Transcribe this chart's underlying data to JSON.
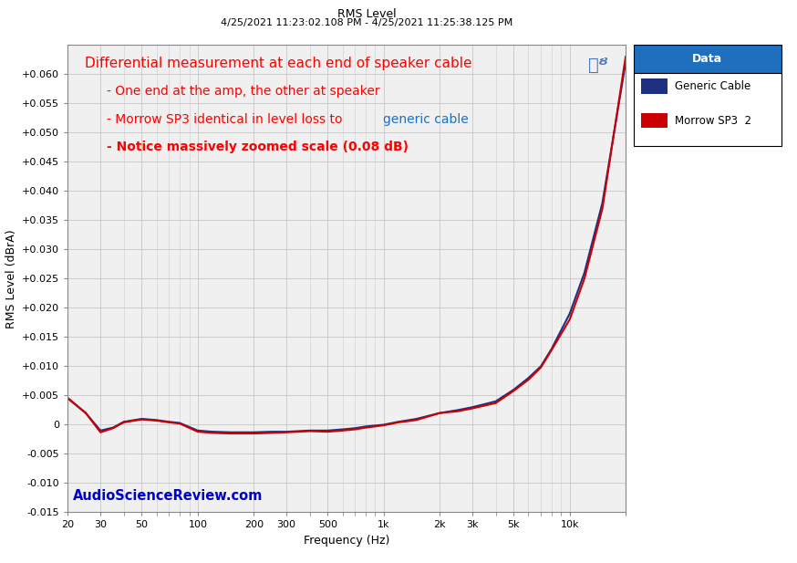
{
  "title_top": "RMS Level",
  "title_date": "4/25/2021 11:23:02.108 PM - 4/25/2021 11:25:38.125 PM",
  "ylabel": "RMS Level (dBrA)",
  "xlabel": "Frequency (Hz)",
  "ylim": [
    -0.015,
    0.065
  ],
  "yticks": [
    -0.015,
    -0.01,
    -0.005,
    0,
    0.005,
    0.01,
    0.015,
    0.02,
    0.025,
    0.03,
    0.035,
    0.04,
    0.045,
    0.05,
    0.055,
    0.06
  ],
  "xtick_labels": [
    "20",
    "30",
    "50",
    "100",
    "200",
    "300",
    "500",
    "1k",
    "2k",
    "3k",
    "5k",
    "10k",
    ""
  ],
  "xtick_values": [
    20,
    30,
    50,
    100,
    200,
    300,
    500,
    1000,
    2000,
    3000,
    5000,
    10000,
    20000
  ],
  "watermark": "AudioScienceReview.com",
  "watermark_color": "#0000CC",
  "legend_title": "Data",
  "legend_title_bg": "#1F6FBF",
  "series": [
    {
      "label": "Generic Cable",
      "color": "#1F3080",
      "linewidth": 1.5,
      "freq": [
        20,
        25,
        30,
        35,
        40,
        50,
        60,
        70,
        80,
        100,
        120,
        150,
        200,
        250,
        300,
        400,
        500,
        600,
        700,
        800,
        1000,
        1200,
        1500,
        2000,
        2500,
        3000,
        4000,
        5000,
        6000,
        7000,
        8000,
        10000,
        12000,
        15000,
        20000
      ],
      "level": [
        0.0045,
        0.002,
        -0.001,
        -0.0005,
        0.0005,
        0.001,
        0.0008,
        0.0005,
        0.0003,
        -0.001,
        -0.0012,
        -0.0013,
        -0.0013,
        -0.0012,
        -0.0012,
        -0.001,
        -0.001,
        -0.0008,
        -0.0006,
        -0.0003,
        0.0,
        0.0005,
        0.001,
        0.002,
        0.0025,
        0.003,
        0.004,
        0.006,
        0.008,
        0.01,
        0.013,
        0.019,
        0.026,
        0.038,
        0.062
      ]
    },
    {
      "label": "Morrow SP3_2",
      "color": "#CC0000",
      "linewidth": 1.5,
      "freq": [
        20,
        25,
        30,
        35,
        40,
        50,
        60,
        70,
        80,
        100,
        120,
        150,
        200,
        250,
        300,
        400,
        500,
        600,
        700,
        800,
        1000,
        1200,
        1500,
        2000,
        2500,
        3000,
        4000,
        5000,
        6000,
        7000,
        8000,
        10000,
        12000,
        15000,
        20000
      ],
      "level": [
        0.0046,
        0.002,
        -0.0013,
        -0.0006,
        0.0004,
        0.0009,
        0.0007,
        0.0004,
        0.0002,
        -0.0012,
        -0.0014,
        -0.0015,
        -0.0015,
        -0.0014,
        -0.0013,
        -0.0011,
        -0.0012,
        -0.001,
        -0.0008,
        -0.0005,
        -0.0001,
        0.0004,
        0.0008,
        0.002,
        0.0023,
        0.0028,
        0.0037,
        0.0058,
        0.0077,
        0.0098,
        0.0128,
        0.018,
        0.025,
        0.037,
        0.063
      ]
    }
  ],
  "bg_color": "#FFFFFF",
  "plot_bg_color": "#F0F0F0",
  "grid_color": "#CCCCCC"
}
